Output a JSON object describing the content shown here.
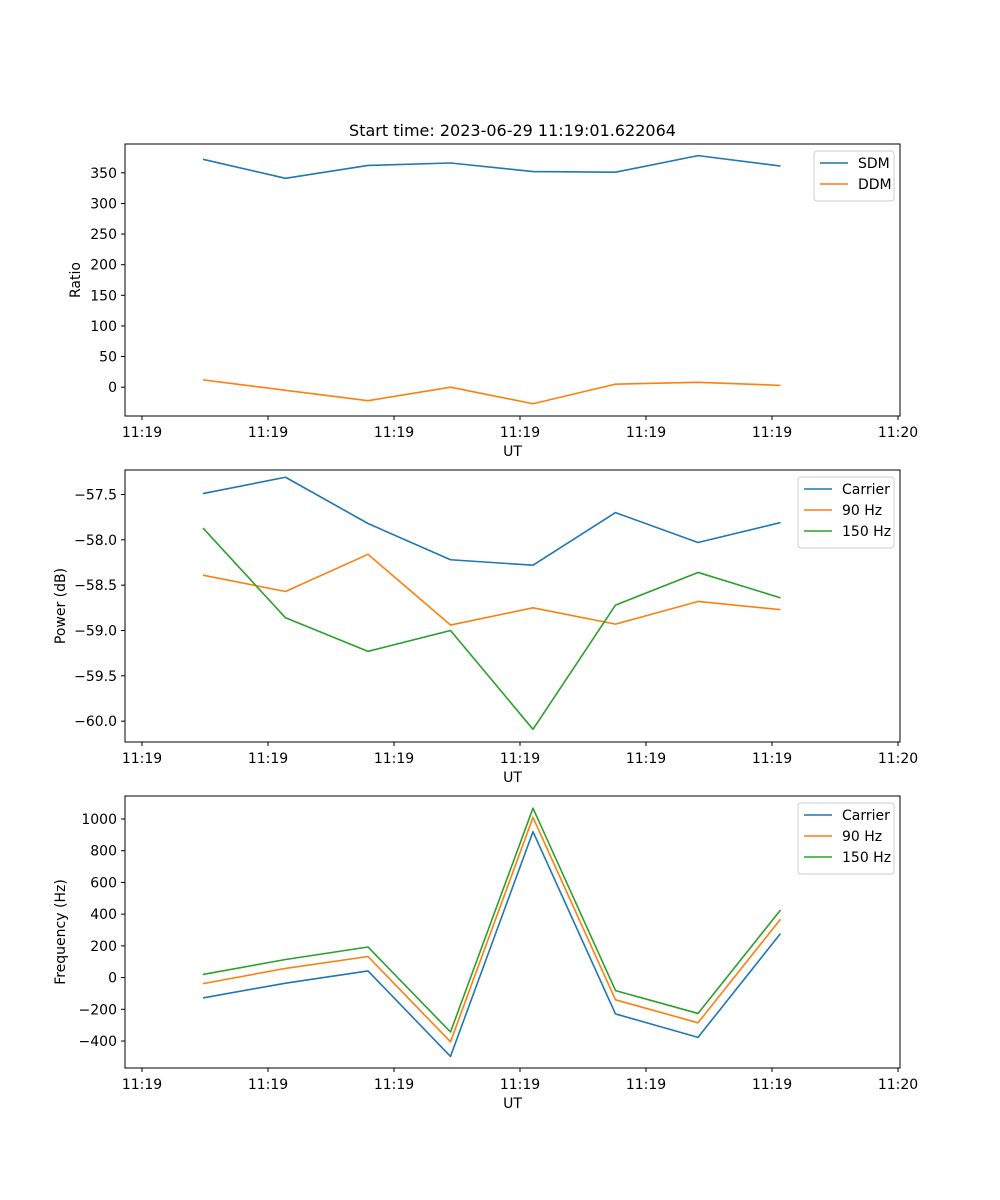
{
  "figure": {
    "title": "Start time: 2023-06-29 11:19:01.622064"
  },
  "chart_data": [
    {
      "type": "line",
      "xlabel": "UT",
      "ylabel": "Ratio",
      "x_tick_labels": [
        "11:19",
        "11:19",
        "11:19",
        "11:19",
        "11:19",
        "11:19",
        "11:20"
      ],
      "y_ticks": [
        0,
        50,
        100,
        150,
        200,
        250,
        300,
        350
      ],
      "ylim": [
        -47,
        397
      ],
      "grid": false,
      "legend_position": "top-right",
      "series": [
        {
          "name": "SDM",
          "color": "#1f77b4",
          "values": [
            372,
            341,
            362,
            366,
            352,
            351,
            378,
            361
          ]
        },
        {
          "name": "DDM",
          "color": "#ff7f0e",
          "values": [
            12,
            -5,
            -22,
            0,
            -27,
            5,
            8,
            3
          ]
        }
      ]
    },
    {
      "type": "line",
      "xlabel": "UT",
      "ylabel": "Power (dB)",
      "x_tick_labels": [
        "11:19",
        "11:19",
        "11:19",
        "11:19",
        "11:19",
        "11:19",
        "11:20"
      ],
      "y_ticks": [
        -60.0,
        -59.5,
        -59.0,
        -58.5,
        -58.0,
        -57.5
      ],
      "y_tick_labels": [
        "−60.0",
        "−59.5",
        "−59.0",
        "−58.5",
        "−58.0",
        "−57.5"
      ],
      "ylim": [
        -60.23,
        -57.23
      ],
      "grid": false,
      "legend_position": "top-right",
      "series": [
        {
          "name": "Carrier",
          "color": "#1f77b4",
          "values": [
            -57.49,
            -57.31,
            -57.82,
            -58.22,
            -58.28,
            -57.7,
            -58.03,
            -57.81
          ]
        },
        {
          "name": "90 Hz",
          "color": "#ff7f0e",
          "values": [
            -58.39,
            -58.57,
            -58.16,
            -58.94,
            -58.75,
            -58.93,
            -58.68,
            -58.77
          ]
        },
        {
          "name": "150 Hz",
          "color": "#2ca02c",
          "values": [
            -57.87,
            -58.86,
            -59.23,
            -59.0,
            -60.09,
            -58.72,
            -58.36,
            -58.64
          ]
        }
      ]
    },
    {
      "type": "line",
      "xlabel": "UT",
      "ylabel": "Frequency (Hz)",
      "x_tick_labels": [
        "11:19",
        "11:19",
        "11:19",
        "11:19",
        "11:19",
        "11:19",
        "11:20"
      ],
      "y_ticks": [
        -400,
        -200,
        0,
        200,
        400,
        600,
        800,
        1000
      ],
      "y_tick_labels": [
        "−400",
        "−200",
        "0",
        "200",
        "400",
        "600",
        "800",
        "1000"
      ],
      "ylim": [
        -570,
        1145
      ],
      "grid": false,
      "legend_position": "top-right",
      "series": [
        {
          "name": "Carrier",
          "color": "#1f77b4",
          "values": [
            -128,
            -35,
            42,
            -497,
            920,
            -229,
            -377,
            278
          ]
        },
        {
          "name": "90 Hz",
          "color": "#ff7f0e",
          "values": [
            -38,
            58,
            133,
            -405,
            1010,
            -140,
            -285,
            368
          ]
        },
        {
          "name": "150 Hz",
          "color": "#2ca02c",
          "values": [
            20,
            114,
            193,
            -343,
            1068,
            -82,
            -226,
            426
          ]
        }
      ]
    }
  ]
}
